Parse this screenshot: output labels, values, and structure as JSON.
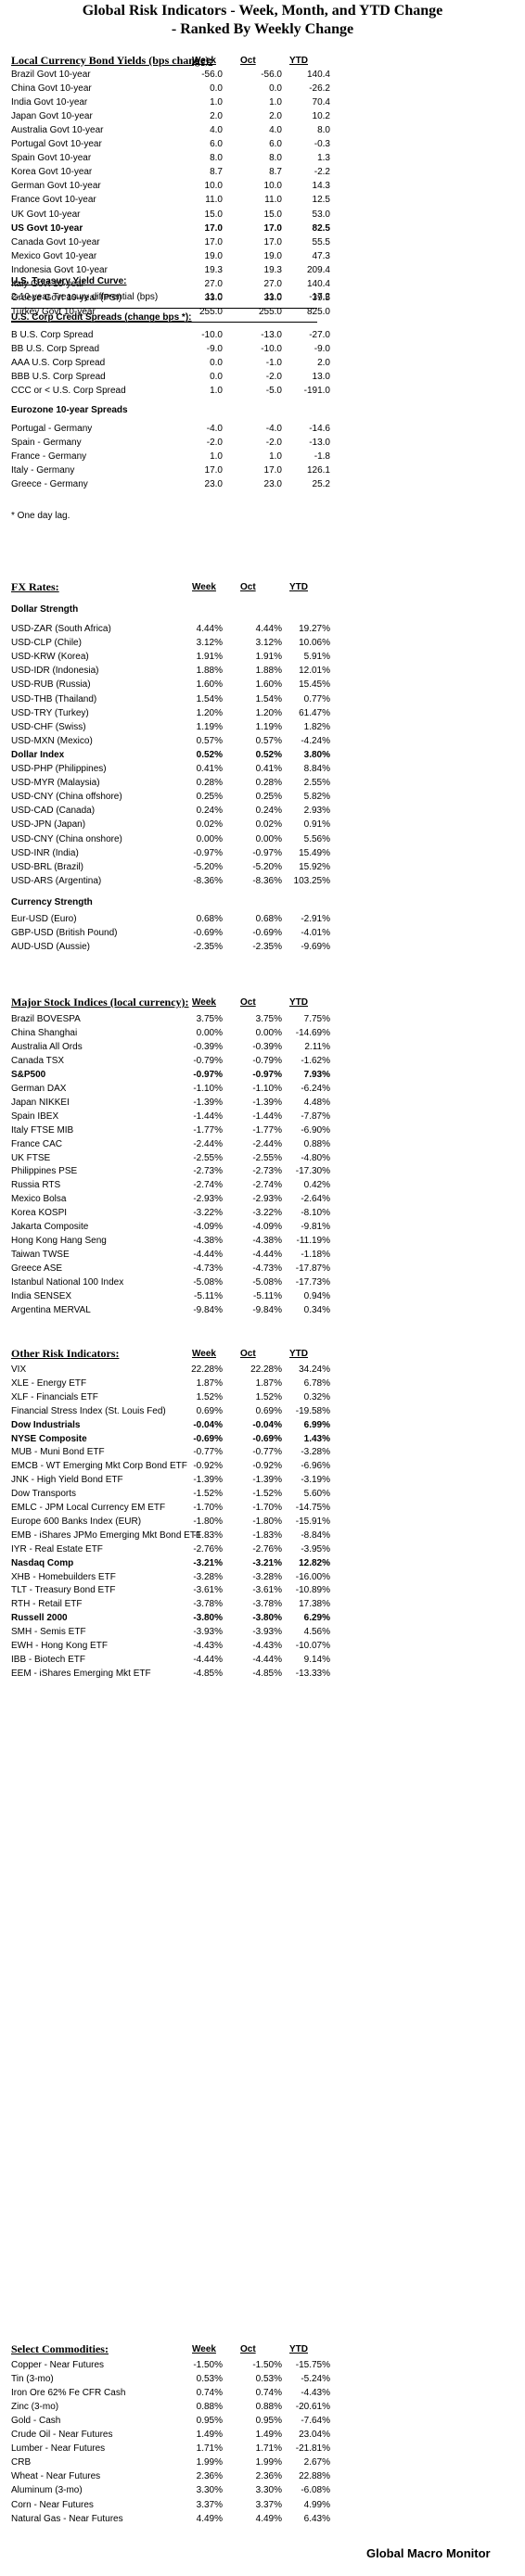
{
  "title_line1": "Global Risk Indicators - Week, Month, and YTD Change",
  "title_line2": "- Ranked By Weekly Change",
  "col_week": "Week",
  "col_oct": "Oct",
  "col_ytd": "YTD",
  "bond": {
    "header": "Local Currency Bond Yields (bps change):",
    "rows": [
      [
        "Brazil Govt 10-year",
        "-56.0",
        "-56.0",
        "140.4",
        false
      ],
      [
        "China Govt 10-year",
        "0.0",
        "0.0",
        "-26.2",
        false
      ],
      [
        "India Govt 10-year",
        "1.0",
        "1.0",
        "70.4",
        false
      ],
      [
        "Japan Govt 10-year",
        "2.0",
        "2.0",
        "10.2",
        false
      ],
      [
        "Australia Govt 10-year",
        "4.0",
        "4.0",
        "8.0",
        false
      ],
      [
        "Portugal Govt 10-year",
        "6.0",
        "6.0",
        "-0.3",
        false
      ],
      [
        "Spain Govt 10-year",
        "8.0",
        "8.0",
        "1.3",
        false
      ],
      [
        "Korea Govt 10-year",
        "8.7",
        "8.7",
        "-2.2",
        false
      ],
      [
        "German Govt 10-year",
        "10.0",
        "10.0",
        "14.3",
        false
      ],
      [
        "France Govt 10-year",
        "11.0",
        "11.0",
        "12.5",
        false
      ],
      [
        "UK Govt 10-year",
        "15.0",
        "15.0",
        "53.0",
        false
      ],
      [
        "US Govt 10-year",
        "17.0",
        "17.0",
        "82.5",
        true
      ],
      [
        "Canada Govt 10-year",
        "17.0",
        "17.0",
        "55.5",
        false
      ],
      [
        "Mexico Govt 10-year",
        "19.0",
        "19.0",
        "47.3",
        false
      ],
      [
        "Indonesia Govt 10-year",
        "19.3",
        "19.3",
        "209.4",
        false
      ],
      [
        "Italy Govt 10-year",
        "27.0",
        "27.0",
        "140.4",
        false
      ],
      [
        "Greece Govt 10-year (PSI)",
        "33.0",
        "33.0",
        "39.5",
        false
      ],
      [
        "Turkey Govt 10-year",
        "255.0",
        "255.0",
        "825.0",
        false
      ]
    ],
    "curve_header": "U.S. Treasury Yield Curve:",
    "curve_rows": [
      [
        "2-10 year Treasury differential (bps)",
        "11.0",
        "11.0",
        "-17.2",
        false
      ]
    ],
    "credit_header": "U.S. Corp Credit Spreads (change bps *):",
    "credit_rows": [
      [
        "B U.S. Corp Spread",
        "-10.0",
        "-13.0",
        "-27.0",
        false
      ],
      [
        "BB U.S. Corp Spread",
        "-9.0",
        "-10.0",
        "-9.0",
        false
      ],
      [
        "AAA U.S. Corp Spread",
        "0.0",
        "-1.0",
        "2.0",
        false
      ],
      [
        "BBB U.S. Corp Spread",
        "0.0",
        "-2.0",
        "13.0",
        false
      ],
      [
        "CCC or < U.S. Corp Spread",
        "1.0",
        "-5.0",
        "-191.0",
        false
      ]
    ],
    "euro_header": "Eurozone 10-year Spreads",
    "euro_rows": [
      [
        "Portugal - Germany",
        "-4.0",
        "-4.0",
        "-14.6",
        false
      ],
      [
        "Spain - Germany",
        "-2.0",
        "-2.0",
        "-13.0",
        false
      ],
      [
        "France - Germany",
        "1.0",
        "1.0",
        "-1.8",
        false
      ],
      [
        "Italy - Germany",
        "17.0",
        "17.0",
        "126.1",
        false
      ],
      [
        "Greece - Germany",
        "23.0",
        "23.0",
        "25.2",
        false
      ]
    ],
    "note": "* One day lag."
  },
  "fx": {
    "header": "FX Rates:",
    "strength_header": "Dollar Strength",
    "rows": [
      [
        "USD-ZAR (South Africa)",
        "4.44%",
        "4.44%",
        "19.27%",
        false
      ],
      [
        "USD-CLP (Chile)",
        "3.12%",
        "3.12%",
        "10.06%",
        false
      ],
      [
        "USD-KRW (Korea)",
        "1.91%",
        "1.91%",
        "5.91%",
        false
      ],
      [
        "USD-IDR (Indonesia)",
        "1.88%",
        "1.88%",
        "12.01%",
        false
      ],
      [
        "USD-RUB (Russia)",
        "1.60%",
        "1.60%",
        "15.45%",
        false
      ],
      [
        "USD-THB  (Thailand)",
        "1.54%",
        "1.54%",
        "0.77%",
        false
      ],
      [
        "USD-TRY (Turkey)",
        "1.20%",
        "1.20%",
        "61.47%",
        false
      ],
      [
        "USD-CHF (Swiss)",
        "1.19%",
        "1.19%",
        "1.82%",
        false
      ],
      [
        "USD-MXN  (Mexico)",
        "0.57%",
        "0.57%",
        "-4.24%",
        false
      ],
      [
        "Dollar Index",
        "0.52%",
        "0.52%",
        "3.80%",
        true
      ],
      [
        "USD-PHP (Philippines)",
        "0.41%",
        "0.41%",
        "8.84%",
        false
      ],
      [
        "USD-MYR (Malaysia)",
        "0.28%",
        "0.28%",
        "2.55%",
        false
      ],
      [
        "USD-CNY (China offshore)",
        "0.25%",
        "0.25%",
        "5.82%",
        false
      ],
      [
        "USD-CAD (Canada)",
        "0.24%",
        "0.24%",
        "2.93%",
        false
      ],
      [
        "USD-JPN (Japan)",
        "0.02%",
        "0.02%",
        "0.91%",
        false
      ],
      [
        "USD-CNY (China onshore)",
        "0.00%",
        "0.00%",
        "5.56%",
        false
      ],
      [
        "USD-INR (India)",
        "-0.97%",
        "-0.97%",
        "15.49%",
        false
      ],
      [
        "USD-BRL (Brazil)",
        "-5.20%",
        "-5.20%",
        "15.92%",
        false
      ],
      [
        "USD-ARS (Argentina)",
        "-8.36%",
        "-8.36%",
        "103.25%",
        false
      ]
    ],
    "currency_header": "Currency Strength",
    "currency_rows": [
      [
        "Eur-USD (Euro)",
        "0.68%",
        "0.68%",
        "-2.91%",
        false
      ],
      [
        "GBP-USD (British Pound)",
        "-0.69%",
        "-0.69%",
        "-4.01%",
        false
      ],
      [
        "AUD-USD (Aussie)",
        "-2.35%",
        "-2.35%",
        "-9.69%",
        false
      ]
    ]
  },
  "stocks": {
    "header": "Major Stock Indices (local currency):",
    "rows": [
      [
        "Brazil BOVESPA",
        "3.75%",
        "3.75%",
        "7.75%",
        false
      ],
      [
        "China Shanghai",
        "0.00%",
        "0.00%",
        "-14.69%",
        false
      ],
      [
        "Australia All Ords",
        "-0.39%",
        "-0.39%",
        "2.11%",
        false
      ],
      [
        "Canada TSX",
        "-0.79%",
        "-0.79%",
        "-1.62%",
        false
      ],
      [
        "S&P500",
        "-0.97%",
        "-0.97%",
        "7.93%",
        true
      ],
      [
        "German DAX",
        "-1.10%",
        "-1.10%",
        "-6.24%",
        false
      ],
      [
        "Japan NIKKEI",
        "-1.39%",
        "-1.39%",
        "4.48%",
        false
      ],
      [
        "Spain IBEX",
        "-1.44%",
        "-1.44%",
        "-7.87%",
        false
      ],
      [
        "Italy FTSE MIB",
        "-1.77%",
        "-1.77%",
        "-6.90%",
        false
      ],
      [
        "France CAC",
        "-2.44%",
        "-2.44%",
        "0.88%",
        false
      ],
      [
        "UK FTSE",
        "-2.55%",
        "-2.55%",
        "-4.80%",
        false
      ],
      [
        "Philippines PSE",
        "-2.73%",
        "-2.73%",
        "-17.30%",
        false
      ],
      [
        "Russia RTS",
        "-2.74%",
        "-2.74%",
        "0.42%",
        false
      ],
      [
        "Mexico Bolsa",
        "-2.93%",
        "-2.93%",
        "-2.64%",
        false
      ],
      [
        "Korea KOSPI",
        "-3.22%",
        "-3.22%",
        "-8.10%",
        false
      ],
      [
        "Jakarta Composite",
        "-4.09%",
        "-4.09%",
        "-9.81%",
        false
      ],
      [
        "Hong Kong Hang Seng",
        "-4.38%",
        "-4.38%",
        "-11.19%",
        false
      ],
      [
        "Taiwan TWSE",
        "-4.44%",
        "-4.44%",
        "-1.18%",
        false
      ],
      [
        "Greece ASE",
        "-4.73%",
        "-4.73%",
        "-17.87%",
        false
      ],
      [
        "Istanbul National 100 Index",
        "-5.08%",
        "-5.08%",
        "-17.73%",
        false
      ],
      [
        "India SENSEX",
        "-5.11%",
        "-5.11%",
        "0.94%",
        false
      ],
      [
        "Argentina MERVAL",
        "-9.84%",
        "-9.84%",
        "0.34%",
        false
      ]
    ]
  },
  "risk": {
    "header": "Other Risk Indicators:",
    "rows": [
      [
        "VIX",
        "22.28%",
        "22.28%",
        "34.24%",
        false
      ],
      [
        "XLE - Energy ETF",
        "1.87%",
        "1.87%",
        "6.78%",
        false
      ],
      [
        "XLF - Financials ETF",
        "1.52%",
        "1.52%",
        "0.32%",
        false
      ],
      [
        "Financial Stress Index (St. Louis Fed)",
        "0.69%",
        "0.69%",
        "-19.58%",
        false
      ],
      [
        "Dow Industrials",
        "-0.04%",
        "-0.04%",
        "6.99%",
        true
      ],
      [
        "NYSE Composite",
        "-0.69%",
        "-0.69%",
        "1.43%",
        true
      ],
      [
        "MUB - Muni Bond ETF",
        "-0.77%",
        "-0.77%",
        "-3.28%",
        false
      ],
      [
        "EMCB - WT Emerging Mkt Corp Bond ETF",
        "-0.92%",
        "-0.92%",
        "-6.96%",
        false
      ],
      [
        "JNK - High Yield Bond ETF",
        "-1.39%",
        "-1.39%",
        "-3.19%",
        false
      ],
      [
        "Dow Transports",
        "-1.52%",
        "-1.52%",
        "5.60%",
        false
      ],
      [
        "EMLC - JPM Local Currency EM ETF",
        "-1.70%",
        "-1.70%",
        "-14.75%",
        false
      ],
      [
        "Europe 600 Banks Index (EUR)",
        "-1.80%",
        "-1.80%",
        "-15.91%",
        false
      ],
      [
        "EMB - iShares JPMo Emerging Mkt Bond ETF",
        "-1.83%",
        "-1.83%",
        "-8.84%",
        false
      ],
      [
        "IYR - Real Estate ETF",
        "-2.76%",
        "-2.76%",
        "-3.95%",
        false
      ],
      [
        "Nasdaq Comp",
        "-3.21%",
        "-3.21%",
        "12.82%",
        true
      ],
      [
        "XHB - Homebuilders ETF",
        "-3.28%",
        "-3.28%",
        "-16.00%",
        false
      ],
      [
        "TLT - Treasury Bond ETF",
        "-3.61%",
        "-3.61%",
        "-10.89%",
        false
      ],
      [
        "RTH - Retail ETF",
        "-3.78%",
        "-3.78%",
        "17.38%",
        false
      ],
      [
        "Russell 2000",
        "-3.80%",
        "-3.80%",
        "6.29%",
        true
      ],
      [
        "SMH - Semis ETF",
        "-3.93%",
        "-3.93%",
        "4.56%",
        false
      ],
      [
        "EWH - Hong Kong ETF",
        "-4.43%",
        "-4.43%",
        "-10.07%",
        false
      ],
      [
        "IBB - Biotech ETF",
        "-4.44%",
        "-4.44%",
        "9.14%",
        false
      ],
      [
        "EEM - iShares Emerging Mkt ETF",
        "-4.85%",
        "-4.85%",
        "-13.33%",
        false
      ]
    ]
  },
  "commod": {
    "header": "Select Commodities:",
    "rows": [
      [
        "Copper - Near Futures",
        "-1.50%",
        "-1.50%",
        "-15.75%",
        false
      ],
      [
        "Tin (3-mo)",
        "0.53%",
        "0.53%",
        "-5.24%",
        false
      ],
      [
        "Iron Ore 62% Fe CFR Cash",
        "0.74%",
        "0.74%",
        "-4.43%",
        false
      ],
      [
        "Zinc (3-mo)",
        "0.88%",
        "0.88%",
        "-20.61%",
        false
      ],
      [
        "Gold - Cash",
        "0.95%",
        "0.95%",
        "-7.64%",
        false
      ],
      [
        "Crude Oil - Near Futures",
        "1.49%",
        "1.49%",
        "23.04%",
        false
      ],
      [
        "Lumber - Near Futures",
        "1.71%",
        "1.71%",
        "-21.81%",
        false
      ],
      [
        "CRB",
        "1.99%",
        "1.99%",
        "2.67%",
        false
      ],
      [
        "Wheat - Near Futures",
        "2.36%",
        "2.36%",
        "22.88%",
        false
      ],
      [
        "Aluminum (3-mo)",
        "3.30%",
        "3.30%",
        "-6.08%",
        false
      ],
      [
        "Corn - Near Futures",
        "3.37%",
        "3.37%",
        "4.99%",
        false
      ],
      [
        "Natural Gas - Near Futures",
        "4.49%",
        "4.49%",
        "6.43%",
        false
      ]
    ]
  },
  "footer": "Global Macro Monitor"
}
